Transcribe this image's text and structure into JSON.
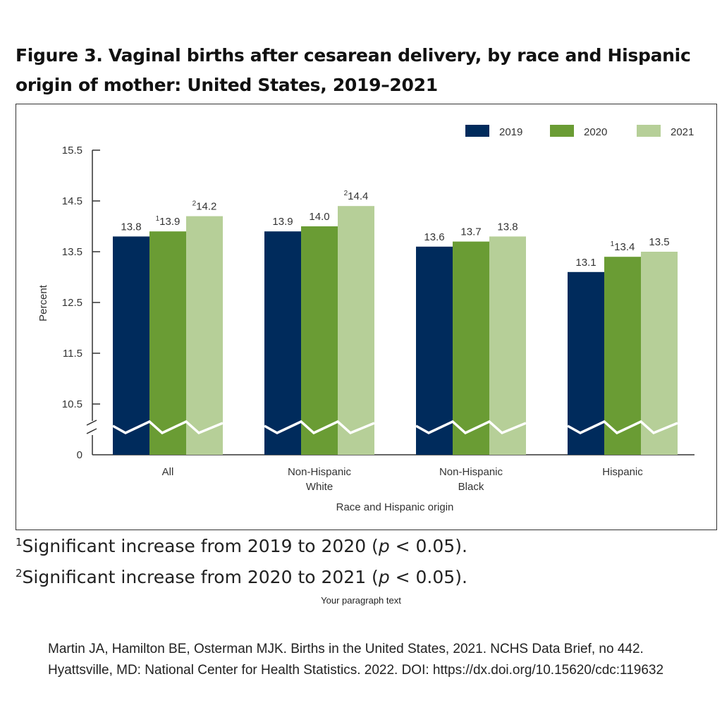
{
  "title": "Figure 3. Vaginal births after cesarean delivery, by race and Hispanic origin of mother: United States, 2019–2021",
  "chart_data": {
    "type": "bar",
    "title": "Figure 3. Vaginal births after cesarean delivery, by race and Hispanic origin of mother: United States, 2019–2021",
    "xlabel": "Race and Hispanic origin",
    "ylabel": "Percent",
    "categories": [
      "All",
      "Non-Hispanic White",
      "Non-Hispanic Black",
      "Hispanic"
    ],
    "category_lines": [
      [
        "All"
      ],
      [
        "Non-Hispanic",
        "White"
      ],
      [
        "Non-Hispanic",
        "Black"
      ],
      [
        "Hispanic"
      ]
    ],
    "series": [
      {
        "name": "2019",
        "color": "#002b5c",
        "values": [
          13.8,
          13.9,
          13.6,
          13.1
        ],
        "superscripts": [
          "",
          "",
          "",
          ""
        ]
      },
      {
        "name": "2020",
        "color": "#6a9c34",
        "values": [
          13.9,
          14.0,
          13.7,
          13.4
        ],
        "superscripts": [
          "1",
          "",
          "",
          "1"
        ]
      },
      {
        "name": "2021",
        "color": "#b6cf98",
        "values": [
          14.2,
          14.4,
          13.8,
          13.5
        ],
        "superscripts": [
          "2",
          "2",
          "",
          ""
        ]
      }
    ],
    "yticks": [
      "15.5",
      "14.5",
      "13.5",
      "12.5",
      "11.5",
      "10.5",
      "0"
    ],
    "ylim": [
      10.5,
      15.5
    ],
    "axis_break": true,
    "grid": false,
    "legend_position": "top-right"
  },
  "footnotes": [
    {
      "mark": "1",
      "text_before": "Significant increase from 2019 to 2020 (",
      "italic": "p",
      "text_after": " < 0.05)."
    },
    {
      "mark": "2",
      "text_before": "Significant increase from 2020 to 2021 (",
      "italic": "p",
      "text_after": " < 0.05)."
    }
  ],
  "paragraph_placeholder": "Your paragraph text",
  "citation": "Martin JA, Hamilton BE, Osterman MJK. Births in the United States, 2021. NCHS Data Brief, no 442. Hyattsville, MD: National Center for Health Statistics. 2022. DOI: https://dx.doi.org/10.15620/cdc:119632"
}
